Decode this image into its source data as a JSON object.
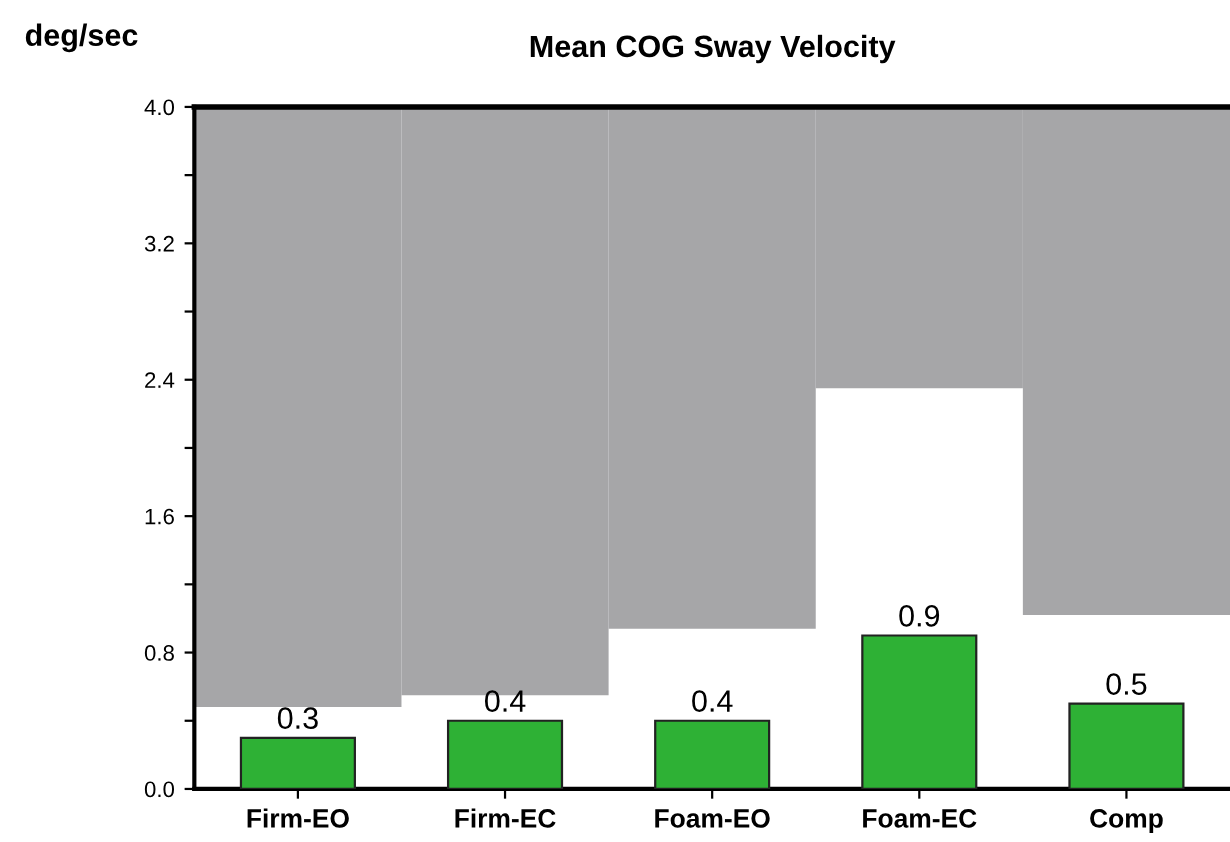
{
  "chart_data": {
    "type": "bar",
    "title": "Mean COG Sway Velocity",
    "ylabel": "deg/sec",
    "categories": [
      "Firm-EO",
      "Firm-EC",
      "Foam-EO",
      "Foam-EC",
      "Comp"
    ],
    "series": [
      {
        "color": "#a6a6a8",
        "base": [
          0.48,
          0.55,
          0.94,
          2.35,
          1.02
        ],
        "values": [
          3.52,
          3.45,
          3.06,
          1.65,
          2.98
        ]
      },
      {
        "color": "#2eb135",
        "values": [
          0.3,
          0.4,
          0.4,
          0.9,
          0.5
        ],
        "value_labels": [
          "0.3",
          "0.4",
          "0.4",
          "0.9",
          "0.5"
        ]
      }
    ],
    "ylim": [
      0,
      4.0
    ],
    "yticks": [
      {
        "value": 0,
        "label": "0.0"
      },
      {
        "value": 0.4,
        "label": null
      },
      {
        "value": 0.8,
        "label": "0.8"
      },
      {
        "value": 1.2,
        "label": null
      },
      {
        "value": 1.6,
        "label": "1.6"
      },
      {
        "value": 2.0,
        "label": null
      },
      {
        "value": 2.4,
        "label": "2.4"
      },
      {
        "value": 2.8,
        "label": null
      },
      {
        "value": 3.2,
        "label": "3.2"
      },
      {
        "value": 3.6,
        "label": null
      },
      {
        "value": 4.0,
        "label": "4.0"
      }
    ],
    "grid": false,
    "legend": false
  }
}
